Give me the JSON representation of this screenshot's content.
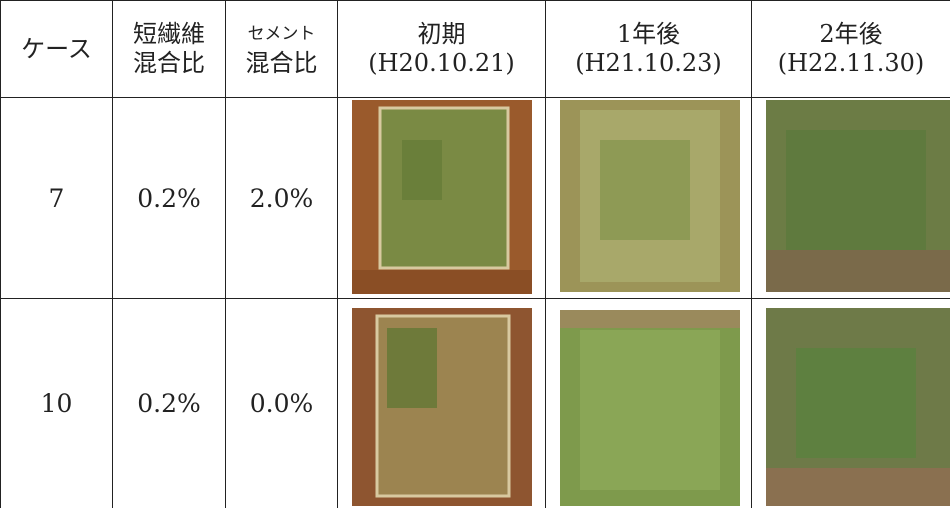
{
  "table": {
    "header": [
      [
        "ケース"
      ],
      [
        "短繊維",
        "混合比"
      ],
      [
        "セメント",
        "混合比"
      ],
      [
        "初期",
        "(H20.10.21)"
      ],
      [
        "1年後",
        "(H21.10.23)"
      ],
      [
        "2年後",
        "(H22.11.30)"
      ]
    ],
    "rows": [
      [
        "7",
        "0.2%",
        "2.0%"
      ],
      [
        "10",
        "0.2%",
        "0.0%"
      ]
    ]
  }
}
